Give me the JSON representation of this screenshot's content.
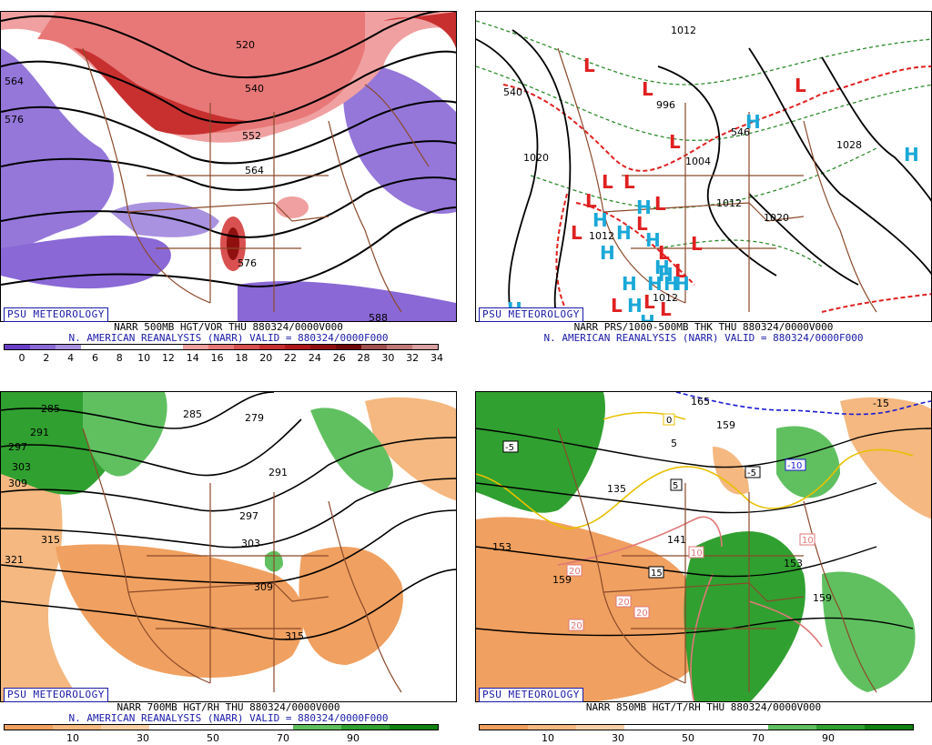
{
  "panels": [
    {
      "badge": "PSU METEOROLOGY",
      "line1": "NARR 500MB HGT/VOR THU 880324/0000V000",
      "line2": "N. AMERICAN REANALYSIS (NARR) VALID = 880324/0000F000",
      "ticks": [
        "0",
        "2",
        "4",
        "6",
        "8",
        "10",
        "12",
        "14",
        "16",
        "18",
        "20",
        "22",
        "24",
        "26",
        "28",
        "30",
        "32",
        "34"
      ],
      "contour_labels": [
        "520",
        "540",
        "552",
        "564",
        "576",
        "588",
        "576",
        "564",
        "540"
      ],
      "colors": [
        "#6a3fc8",
        "#8a68d6",
        "#a992e0",
        "#ffffff",
        "#ffffff",
        "#ffffff",
        "#ffffff",
        "#f0a0a0",
        "#e87878",
        "#d85050",
        "#c83030",
        "#b01818",
        "#901010",
        "#700808",
        "#a05050",
        "#c07878",
        "#d8a0a0"
      ]
    },
    {
      "badge": "PSU METEOROLOGY",
      "line1": "NARR PRS/1000-500MB THK THU 880324/0000V000",
      "line2": "N. AMERICAN REANALYSIS (NARR) VALID = 880324/0000F000",
      "contour_labels": [
        "540",
        "1012",
        "1020",
        "996",
        "1004",
        "1012",
        "1020",
        "1028",
        "1012",
        "540",
        "546",
        "1012"
      ],
      "highs": 17,
      "lows": 16,
      "colors": [
        "#000000",
        "#2e8b2e",
        "#e02020",
        "#00a0d8"
      ]
    },
    {
      "badge": "PSU METEOROLOGY",
      "line1": "NARR 700MB HGT/RH THU 880324/0000V000",
      "line2": "N. AMERICAN REANALYSIS (NARR) VALID = 880324/0000F000",
      "ticks": [
        "10",
        "30",
        "50",
        "70",
        "90"
      ],
      "contour_labels": [
        "285",
        "291",
        "297",
        "303",
        "309",
        "315",
        "321",
        "285",
        "279",
        "291",
        "297",
        "303",
        "309",
        "315"
      ],
      "colors": [
        "#f0a060",
        "#f4b880",
        "#f8d0a8",
        "#ffffff",
        "#ffffff",
        "#ffffff",
        "#60c060",
        "#30a030",
        "#108010"
      ]
    },
    {
      "badge": "PSU METEOROLOGY",
      "line1": "NARR 850MB HGT/T/RH THU 880324/0000V000",
      "line2": "",
      "ticks": [
        "10",
        "30",
        "50",
        "70",
        "90"
      ],
      "contour_labels": [
        "-5",
        "0",
        "-10",
        "-5",
        "5",
        "10",
        "15",
        "20",
        "20",
        "20",
        "20",
        "10",
        "153",
        "159",
        "135",
        "141",
        "153",
        "159",
        "165",
        "159",
        "-15",
        "5"
      ],
      "colors": [
        "#f0a060",
        "#f4b880",
        "#f8d0a8",
        "#ffffff",
        "#ffffff",
        "#ffffff",
        "#60c060",
        "#30a030",
        "#108010"
      ]
    }
  ]
}
